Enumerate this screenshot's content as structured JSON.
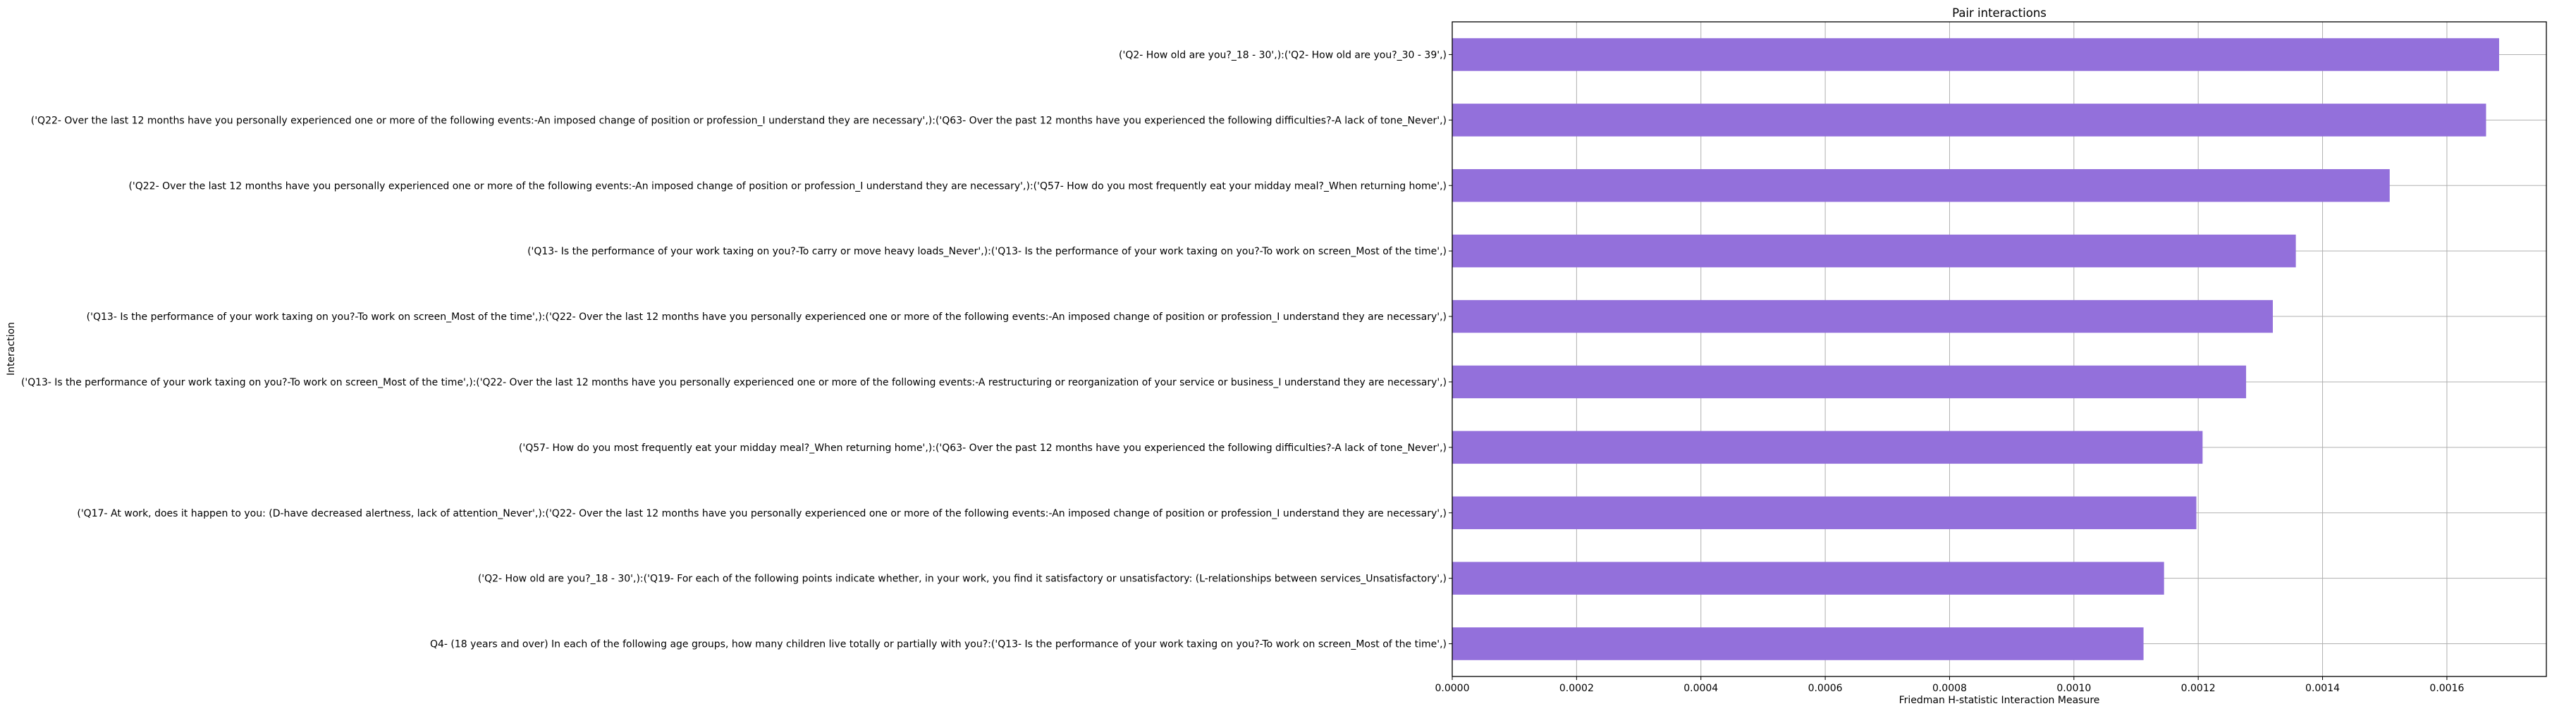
{
  "chart_data": {
    "type": "bar",
    "orientation": "horizontal",
    "title": "Pair interactions",
    "xlabel": "Friedman H-statistic Interaction Measure",
    "ylabel": "Interaction",
    "xlim": [
      0,
      0.00176
    ],
    "xticks": [
      0,
      0.0002,
      0.0004,
      0.0006,
      0.0008,
      0.001,
      0.0012,
      0.0014,
      0.0016
    ],
    "xtick_labels": [
      "0.0000",
      "0.0002",
      "0.0004",
      "0.0006",
      "0.0008",
      "0.0010",
      "0.0012",
      "0.0014",
      "0.0016"
    ],
    "grid": true,
    "bar_color": "#9370db",
    "categories": [
      "('Q2- How old are you?_18 - 30',):('Q2- How old are you?_30 - 39',)",
      "('Q22- Over the last 12 months have you personally experienced one or more of the following events:-An imposed change of position or profession_I understand they are necessary',):('Q63- Over the past 12 months have you experienced the following difficulties?-A lack of tone_Never',)",
      "('Q22- Over the last 12 months have you personally experienced one or more of the following events:-An imposed change of position or profession_I understand they are necessary',):('Q57- How do you most frequently eat your midday meal?_When returning home',)",
      "('Q13- Is the performance of your work taxing on you?-To carry or move heavy loads_Never',):('Q13- Is the performance of your work taxing on you?-To work on screen_Most of the time',)",
      "('Q13- Is the performance of your work taxing on you?-To work on screen_Most of the time',):('Q22- Over the last 12 months have you personally experienced one or more of the following events:-An imposed change of position or profession_I understand they are necessary',)",
      "('Q13- Is the performance of your work taxing on you?-To work on screen_Most of the time',):('Q22- Over the last 12 months have you personally experienced one or more of the following events:-A restructuring or reorganization of your service or business_I understand they are necessary',)",
      "('Q57- How do you most frequently eat your midday meal?_When returning home',):('Q63- Over the past 12 months have you experienced the following difficulties?-A lack of tone_Never',)",
      "('Q17- At work, does it happen to you: (D-have decreased alertness, lack of attention_Never',):('Q22- Over the last 12 months have you personally experienced one or more of the following events:-An imposed change of position or profession_I understand they are necessary',)",
      "('Q2- How old are you?_18 - 30',):('Q19- For each of the following points indicate whether, in your work, you find it satisfactory or unsatisfactory: (L-relationships between services_Unsatisfactory',)",
      "Q4- (18 years and over) In each of the following age groups, how many children live totally or partially with you?:('Q13- Is the performance of your work taxing on you?-To work on screen_Most of the time',)"
    ],
    "values": [
      0.001684,
      0.001663,
      0.001508,
      0.001357,
      0.00132,
      0.001277,
      0.001207,
      0.001197,
      0.001145,
      0.001112
    ]
  }
}
